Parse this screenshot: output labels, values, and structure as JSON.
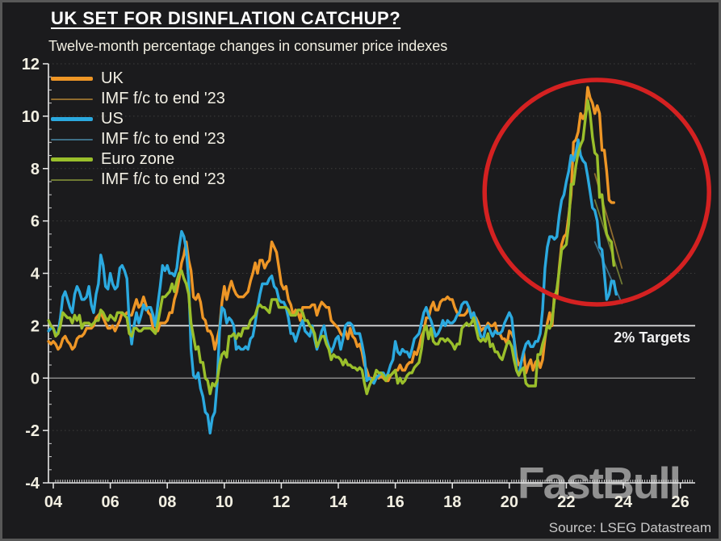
{
  "header": {
    "title": "UK SET FOR DISINFLATION CATCHUP?",
    "subtitle": "Twelve-month percentage changes in consumer price indexes"
  },
  "watermark": "FastBull",
  "source": "Source: LSEG Datastream",
  "annotations": {
    "targets_label": "2% Targets"
  },
  "legend": {
    "items": [
      {
        "label": "UK",
        "color": "#EE9626",
        "thick": true
      },
      {
        "label": "IMF f/c to end '23",
        "color": "#8F6B2E",
        "thick": false
      },
      {
        "label": "US",
        "color": "#2BA9DF",
        "thick": true
      },
      {
        "label": "IMF f/c to end '23",
        "color": "#3E6F86",
        "thick": false
      },
      {
        "label": "Euro zone",
        "color": "#9ABF2B",
        "thick": true
      },
      {
        "label": "IMF f/c to end '23",
        "color": "#6F7A33",
        "thick": false
      }
    ]
  },
  "chart_data": {
    "type": "line",
    "title": "UK SET FOR DISINFLATION CATCHUP?",
    "subtitle": "Twelve-month percentage changes in consumer price indexes",
    "xlim": [
      2003.83,
      2026.52
    ],
    "ylim": [
      -4,
      12
    ],
    "x_ticks": [
      {
        "year": 2004,
        "label": "04"
      },
      {
        "year": 2006,
        "label": "06"
      },
      {
        "year": 2008,
        "label": "08"
      },
      {
        "year": 2010,
        "label": "10"
      },
      {
        "year": 2012,
        "label": "12"
      },
      {
        "year": 2014,
        "label": "14"
      },
      {
        "year": 2016,
        "label": "16"
      },
      {
        "year": 2018,
        "label": "18"
      },
      {
        "year": 2020,
        "label": "20"
      },
      {
        "year": 2022,
        "label": "22"
      },
      {
        "year": 2024,
        "label": "24"
      },
      {
        "year": 2026,
        "label": "26"
      }
    ],
    "y_ticks": [
      12,
      10,
      8,
      6,
      4,
      2,
      0,
      -2,
      -4
    ],
    "dotted_gridlines": {
      "values": [
        12,
        10,
        8,
        6,
        4,
        -2,
        -4
      ],
      "color": "#3d3d3d"
    },
    "reference_lines": [
      {
        "value": 2,
        "color": "#e2e2e2",
        "width": 1.7,
        "label": "2% Targets"
      },
      {
        "value": 0,
        "color": "#9c9c9c",
        "width": 1.3,
        "label": ""
      }
    ],
    "series": [
      {
        "name": "UK IMF f/c to end '23",
        "color": "#8F6B2E",
        "width": 1.8,
        "forecast": true,
        "points": [
          [
            2023.0,
            7.8
          ],
          [
            2023.95,
            4.2
          ]
        ]
      },
      {
        "name": "US IMF f/c to end '23",
        "color": "#3E6F86",
        "width": 1.8,
        "forecast": true,
        "points": [
          [
            2023.0,
            5.2
          ],
          [
            2023.95,
            2.85
          ]
        ]
      },
      {
        "name": "Euro zone IMF f/c to end '23",
        "color": "#6F7A33",
        "width": 1.8,
        "forecast": true,
        "points": [
          [
            2023.0,
            6.8
          ],
          [
            2023.95,
            3.6
          ]
        ]
      },
      {
        "name": "UK",
        "color": "#EE9626",
        "width": 3.4,
        "start_year": 2003.8333,
        "monthly": true,
        "values": [
          1.4,
          1.3,
          1.4,
          1.3,
          1.1,
          1.2,
          1.5,
          1.6,
          1.4,
          1.3,
          1.1,
          1.2,
          1.5,
          1.6,
          1.6,
          1.7,
          1.9,
          1.9,
          1.9,
          2.0,
          2.3,
          2.4,
          2.5,
          2.3,
          2.1,
          1.9,
          1.9,
          2.0,
          1.8,
          2.0,
          2.2,
          2.5,
          2.4,
          2.5,
          2.4,
          2.4,
          2.7,
          3.0,
          2.7,
          2.8,
          3.1,
          2.8,
          2.5,
          2.4,
          1.9,
          1.8,
          1.8,
          2.1,
          2.1,
          2.1,
          2.2,
          2.5,
          2.5,
          3.0,
          3.3,
          3.8,
          4.4,
          4.7,
          5.2,
          4.5,
          4.1,
          3.1,
          3.0,
          3.2,
          2.9,
          2.3,
          2.2,
          1.8,
          1.8,
          1.6,
          1.1,
          1.5,
          1.9,
          2.9,
          3.5,
          3.0,
          3.4,
          3.7,
          3.4,
          3.2,
          3.1,
          3.1,
          3.1,
          3.2,
          3.3,
          3.7,
          4.0,
          4.4,
          4.0,
          4.5,
          4.5,
          4.2,
          4.4,
          4.5,
          5.2,
          5.0,
          4.8,
          4.2,
          3.6,
          3.4,
          3.5,
          3.0,
          2.8,
          2.4,
          2.6,
          2.5,
          2.2,
          2.7,
          2.7,
          2.7,
          2.7,
          2.8,
          2.8,
          2.4,
          2.7,
          2.9,
          2.8,
          2.7,
          2.7,
          2.2,
          2.1,
          2.0,
          1.9,
          1.7,
          1.6,
          1.8,
          1.5,
          1.9,
          1.6,
          1.5,
          1.2,
          1.3,
          1.0,
          0.5,
          0.3,
          0.0,
          0.0,
          -0.1,
          0.1,
          0.0,
          0.1,
          0.0,
          -0.1,
          -0.1,
          0.1,
          0.2,
          0.3,
          0.3,
          0.5,
          0.3,
          0.3,
          0.5,
          0.6,
          0.6,
          1.0,
          0.9,
          1.2,
          1.6,
          1.8,
          2.3,
          2.3,
          2.7,
          2.9,
          2.6,
          2.6,
          2.9,
          3.0,
          3.0,
          3.1,
          3.0,
          3.0,
          2.7,
          2.5,
          2.4,
          2.4,
          2.4,
          2.5,
          2.7,
          2.4,
          2.4,
          2.3,
          2.1,
          1.8,
          1.9,
          1.9,
          2.1,
          2.0,
          2.0,
          2.1,
          1.7,
          1.7,
          1.5,
          1.5,
          1.3,
          1.8,
          1.7,
          1.5,
          0.8,
          0.5,
          0.6,
          1.0,
          0.2,
          0.5,
          0.7,
          0.3,
          0.6,
          0.7,
          0.4,
          0.7,
          1.5,
          2.1,
          2.5,
          2.0,
          3.2,
          3.1,
          4.2,
          5.1,
          5.4,
          5.5,
          6.2,
          7.0,
          9.0,
          9.1,
          9.4,
          10.1,
          9.9,
          10.1,
          11.1,
          10.7,
          10.5,
          10.1,
          10.4,
          10.1,
          8.7,
          8.7,
          7.9,
          6.8,
          6.7,
          6.7
        ]
      },
      {
        "name": "US",
        "color": "#2BA9DF",
        "width": 3.4,
        "start_year": 2003.8333,
        "monthly": true,
        "values": [
          1.8,
          1.9,
          1.9,
          1.7,
          1.7,
          2.3,
          3.1,
          3.3,
          3.0,
          2.7,
          2.5,
          3.2,
          3.5,
          3.3,
          3.0,
          3.0,
          3.1,
          3.5,
          2.8,
          2.5,
          3.2,
          3.6,
          4.7,
          4.3,
          3.5,
          3.4,
          4.0,
          3.6,
          3.4,
          3.5,
          4.2,
          4.3,
          4.1,
          3.8,
          2.1,
          1.3,
          2.0,
          2.5,
          2.1,
          2.4,
          2.8,
          2.6,
          2.7,
          2.7,
          2.4,
          2.0,
          2.8,
          3.5,
          4.3,
          4.1,
          4.3,
          4.0,
          4.0,
          3.9,
          4.2,
          5.0,
          5.6,
          5.4,
          4.9,
          3.7,
          1.1,
          0.1,
          0.0,
          0.2,
          -0.4,
          -0.7,
          -1.3,
          -1.4,
          -2.1,
          -1.5,
          -1.3,
          -0.2,
          1.8,
          2.7,
          2.6,
          2.1,
          2.3,
          2.2,
          2.0,
          1.1,
          1.2,
          1.1,
          1.1,
          1.2,
          1.1,
          1.5,
          1.6,
          2.1,
          2.7,
          3.2,
          3.6,
          3.6,
          3.6,
          3.8,
          3.9,
          3.5,
          3.4,
          3.0,
          2.9,
          2.9,
          2.7,
          2.3,
          1.7,
          1.7,
          1.4,
          1.7,
          2.0,
          2.2,
          1.8,
          1.7,
          1.6,
          2.0,
          1.5,
          1.1,
          1.4,
          1.8,
          2.0,
          1.5,
          1.2,
          1.0,
          1.2,
          1.5,
          1.6,
          1.1,
          1.5,
          2.0,
          2.1,
          2.1,
          2.0,
          1.7,
          1.7,
          1.7,
          1.3,
          0.8,
          -0.1,
          0.0,
          -0.1,
          -0.2,
          0.0,
          0.1,
          0.2,
          0.2,
          0.0,
          0.2,
          0.5,
          0.7,
          1.4,
          1.0,
          0.9,
          1.1,
          1.0,
          1.0,
          0.8,
          1.1,
          1.5,
          1.6,
          1.7,
          2.1,
          2.5,
          2.7,
          2.4,
          2.2,
          1.9,
          1.6,
          1.7,
          1.9,
          2.2,
          2.0,
          2.2,
          2.1,
          2.1,
          2.2,
          2.4,
          2.5,
          2.8,
          2.9,
          2.9,
          2.7,
          2.3,
          2.5,
          2.2,
          1.9,
          1.6,
          1.5,
          1.9,
          2.0,
          1.8,
          1.6,
          1.8,
          1.7,
          1.7,
          1.8,
          2.1,
          2.3,
          2.5,
          2.3,
          1.5,
          0.3,
          0.1,
          0.6,
          1.0,
          1.3,
          1.4,
          1.2,
          1.2,
          1.4,
          1.4,
          1.7,
          2.6,
          4.2,
          5.0,
          5.4,
          5.4,
          5.3,
          5.4,
          6.2,
          6.8,
          7.0,
          7.5,
          7.9,
          8.5,
          8.3,
          8.6,
          9.1,
          8.5,
          8.3,
          8.2,
          7.7,
          7.1,
          6.5,
          6.4,
          6.0,
          5.0,
          4.9,
          4.0,
          3.0,
          3.2,
          3.7,
          3.7,
          3.2
        ]
      },
      {
        "name": "Euro zone",
        "color": "#9ABF2B",
        "width": 3.4,
        "start_year": 2003.8333,
        "monthly": true,
        "values": [
          2.2,
          2.0,
          1.9,
          1.6,
          1.7,
          2.0,
          2.5,
          2.4,
          2.3,
          2.3,
          2.1,
          2.4,
          2.2,
          2.4,
          1.9,
          2.1,
          2.1,
          2.1,
          2.0,
          2.1,
          2.2,
          2.2,
          2.6,
          2.5,
          2.3,
          2.2,
          2.4,
          2.3,
          2.2,
          2.5,
          2.5,
          2.5,
          2.4,
          2.3,
          1.7,
          1.6,
          1.9,
          1.9,
          1.8,
          1.8,
          1.9,
          1.9,
          1.9,
          1.9,
          1.8,
          1.7,
          2.1,
          2.6,
          3.1,
          3.1,
          3.2,
          3.3,
          3.6,
          3.3,
          3.7,
          4.0,
          4.1,
          3.8,
          3.6,
          3.2,
          2.1,
          1.6,
          1.1,
          1.2,
          0.6,
          0.6,
          0.0,
          -0.1,
          -0.6,
          -0.2,
          -0.3,
          -0.1,
          0.5,
          0.9,
          1.0,
          0.8,
          1.6,
          1.6,
          1.7,
          1.5,
          1.7,
          1.6,
          1.9,
          1.9,
          1.9,
          2.2,
          2.3,
          2.4,
          2.7,
          2.8,
          2.7,
          2.7,
          2.6,
          2.5,
          3.0,
          3.0,
          3.0,
          2.7,
          2.7,
          2.7,
          2.7,
          2.6,
          2.4,
          2.4,
          2.4,
          2.6,
          2.6,
          2.5,
          2.2,
          2.2,
          2.0,
          1.9,
          1.7,
          1.2,
          1.4,
          1.6,
          1.6,
          1.3,
          1.1,
          0.7,
          0.9,
          0.8,
          0.8,
          0.7,
          0.5,
          0.7,
          0.5,
          0.5,
          0.4,
          0.4,
          0.3,
          0.4,
          0.3,
          -0.2,
          -0.6,
          -0.3,
          -0.1,
          0.0,
          0.3,
          0.2,
          0.2,
          0.1,
          -0.1,
          0.1,
          0.1,
          0.2,
          0.3,
          -0.2,
          0.0,
          -0.2,
          -0.1,
          0.1,
          0.2,
          0.2,
          0.4,
          0.5,
          0.6,
          1.1,
          1.8,
          2.0,
          1.5,
          1.9,
          1.4,
          1.3,
          1.3,
          1.5,
          1.5,
          1.4,
          1.5,
          1.4,
          1.3,
          1.1,
          1.3,
          1.3,
          1.9,
          2.0,
          2.1,
          2.0,
          2.1,
          2.3,
          1.9,
          1.5,
          1.4,
          1.5,
          1.4,
          1.7,
          1.2,
          1.3,
          1.0,
          1.0,
          0.8,
          0.7,
          1.0,
          1.3,
          1.4,
          1.2,
          0.7,
          0.3,
          0.1,
          0.3,
          0.4,
          -0.2,
          -0.3,
          -0.3,
          -0.3,
          -0.3,
          0.9,
          0.9,
          1.3,
          1.6,
          2.0,
          1.9,
          2.2,
          3.0,
          3.4,
          4.1,
          4.9,
          5.0,
          5.1,
          5.9,
          7.4,
          7.4,
          8.1,
          8.6,
          8.9,
          9.1,
          9.9,
          10.6,
          10.1,
          9.2,
          8.6,
          8.5,
          6.9,
          7.0,
          6.1,
          5.5,
          5.3,
          5.2,
          4.3
        ]
      }
    ],
    "highlight_circle": {
      "center_year": 2023.07,
      "center_value": 7.1,
      "radius_px": 139,
      "color": "#D42121",
      "stroke_width": 5.5
    }
  }
}
